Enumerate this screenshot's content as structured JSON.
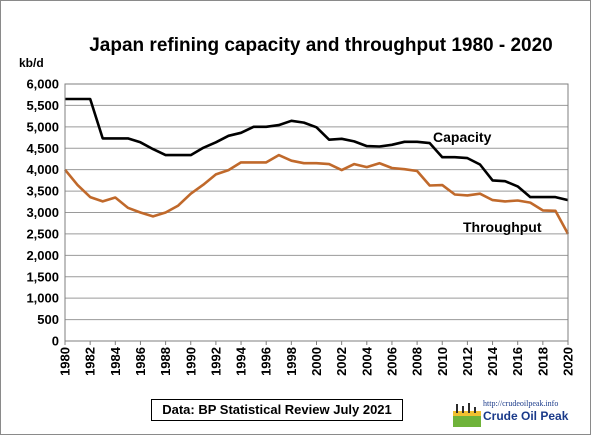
{
  "chart_data": {
    "type": "line",
    "title": "Japan refining capacity and throughput  1980 - 2020",
    "ylabel": "kb/d",
    "xlabel": "",
    "ylim": [
      0,
      6000
    ],
    "yticks": [
      "0",
      "500",
      "1,000",
      "1,500",
      "2,000",
      "2,500",
      "3,000",
      "3,500",
      "4,000",
      "4,500",
      "5,000",
      "5,500",
      "6,000"
    ],
    "ytick_values": [
      0,
      500,
      1000,
      1500,
      2000,
      2500,
      3000,
      3500,
      4000,
      4500,
      5000,
      5500,
      6000
    ],
    "xlim": [
      1980,
      2020
    ],
    "xticks": [
      "1980",
      "1982",
      "1984",
      "1986",
      "1988",
      "1990",
      "1992",
      "1994",
      "1996",
      "1998",
      "2000",
      "2002",
      "2004",
      "2006",
      "2008",
      "2010",
      "2012",
      "2014",
      "2016",
      "2018",
      "2020"
    ],
    "xtick_values": [
      1980,
      1982,
      1984,
      1986,
      1988,
      1990,
      1992,
      1994,
      1996,
      1998,
      2000,
      2002,
      2004,
      2006,
      2008,
      2010,
      2012,
      2014,
      2016,
      2018,
      2020
    ],
    "grid": true,
    "x": [
      1980,
      1981,
      1982,
      1983,
      1984,
      1985,
      1986,
      1987,
      1988,
      1989,
      1990,
      1991,
      1992,
      1993,
      1994,
      1995,
      1996,
      1997,
      1998,
      1999,
      2000,
      2001,
      2002,
      2003,
      2004,
      2005,
      2006,
      2007,
      2008,
      2009,
      2010,
      2011,
      2012,
      2013,
      2014,
      2015,
      2016,
      2017,
      2018,
      2019,
      2020
    ],
    "series": [
      {
        "name": "Capacity",
        "color": "#000000",
        "values": [
          5650,
          5650,
          5650,
          4730,
          4730,
          4730,
          4640,
          4480,
          4340,
          4340,
          4340,
          4510,
          4640,
          4790,
          4860,
          5000,
          5000,
          5040,
          5140,
          5100,
          4990,
          4700,
          4720,
          4660,
          4550,
          4540,
          4580,
          4650,
          4650,
          4620,
          4290,
          4290,
          4270,
          4120,
          3750,
          3730,
          3610,
          3360,
          3360,
          3360,
          3290
        ]
      },
      {
        "name": "Throughput",
        "color": "#c0692b",
        "values": [
          4000,
          3640,
          3360,
          3260,
          3350,
          3110,
          3000,
          2910,
          3000,
          3160,
          3440,
          3650,
          3890,
          3990,
          4170,
          4170,
          4170,
          4340,
          4210,
          4150,
          4150,
          4130,
          3990,
          4130,
          4060,
          4150,
          4040,
          4010,
          3970,
          3630,
          3640,
          3420,
          3400,
          3440,
          3290,
          3260,
          3280,
          3230,
          3050,
          3040,
          2500
        ]
      }
    ]
  },
  "labels": {
    "capacity": "Capacity",
    "throughput": "Throughput"
  },
  "source": "Data: BP Statistical Review July 2021",
  "logo": {
    "url": "http://crudeoilpeak.info",
    "name": "Crude Oil Peak"
  }
}
